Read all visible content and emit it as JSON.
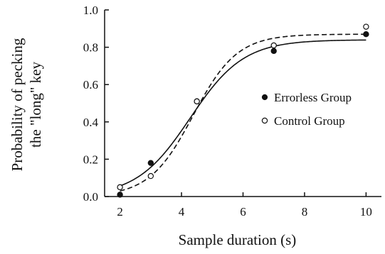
{
  "chart_data": {
    "type": "scatter",
    "title": "",
    "xlabel": "Sample duration (s)",
    "ylabel_line1": "Probability of pecking",
    "ylabel_line2": "the \"long\" key",
    "xlim": [
      1.5,
      10.5
    ],
    "ylim": [
      0.0,
      1.0
    ],
    "xticks": [
      2,
      4,
      6,
      8,
      10
    ],
    "yticks": [
      0.0,
      0.2,
      0.4,
      0.6,
      0.8,
      1.0
    ],
    "ytick_labels": [
      "0.0",
      "0.2",
      "0.4",
      "0.6",
      "0.8",
      "1.0"
    ],
    "grid": false,
    "legend_position": "center-right",
    "series": [
      {
        "name": "Errorless Group",
        "marker": "filled-circle",
        "line": "solid",
        "x": [
          2,
          3,
          4.5,
          7,
          10
        ],
        "y": [
          0.01,
          0.18,
          0.51,
          0.78,
          0.87
        ],
        "fit": {
          "a": 0.84,
          "mid": 4.28,
          "slope": 1.15,
          "base": 0.0
        }
      },
      {
        "name": "Control Group",
        "marker": "open-circle",
        "line": "dashed",
        "x": [
          2,
          3,
          4.5,
          7,
          10
        ],
        "y": [
          0.05,
          0.11,
          0.51,
          0.81,
          0.91
        ],
        "fit": {
          "a": 0.87,
          "mid": 4.38,
          "slope": 1.4,
          "base": 0.0
        }
      }
    ]
  }
}
